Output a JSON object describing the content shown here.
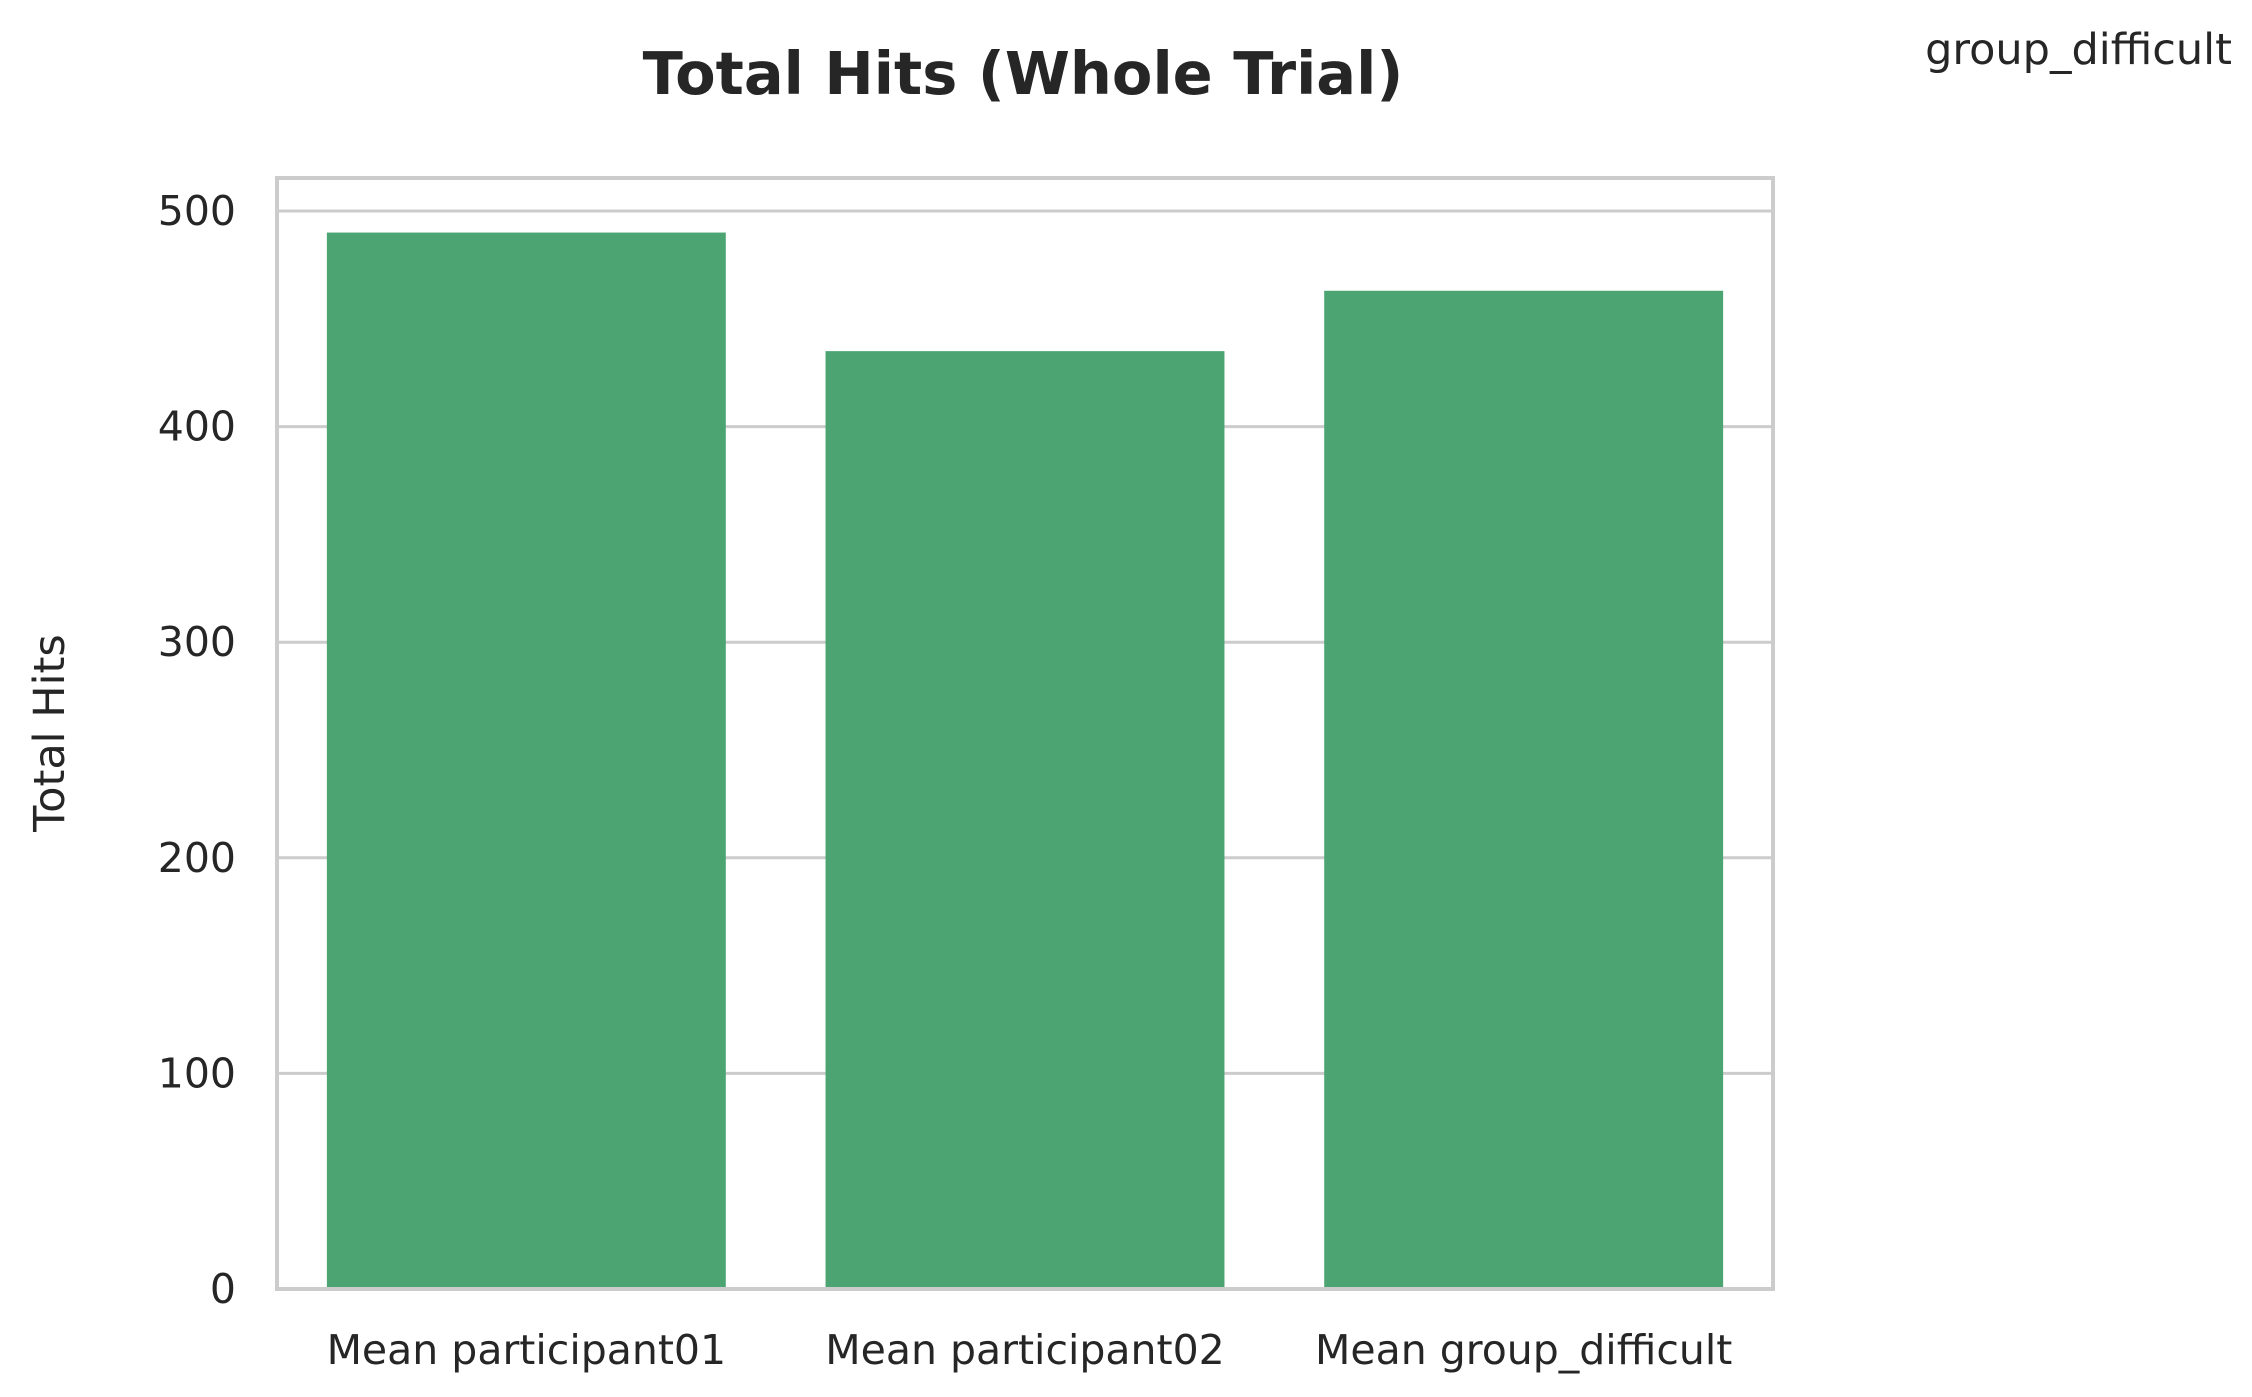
{
  "chart_data": {
    "type": "bar",
    "title": "Total Hits (Whole Trial)",
    "xlabel": "",
    "ylabel": "Total Hits",
    "categories": [
      "Mean participant01",
      "Mean participant02",
      "Mean group_difficult"
    ],
    "values": [
      490,
      435,
      463
    ],
    "ylim": [
      0,
      516
    ],
    "yticks": [
      0,
      100,
      200,
      300,
      400,
      500
    ],
    "grid": true,
    "bar_color": "#4ca473",
    "corner_label": "group_difficult"
  }
}
